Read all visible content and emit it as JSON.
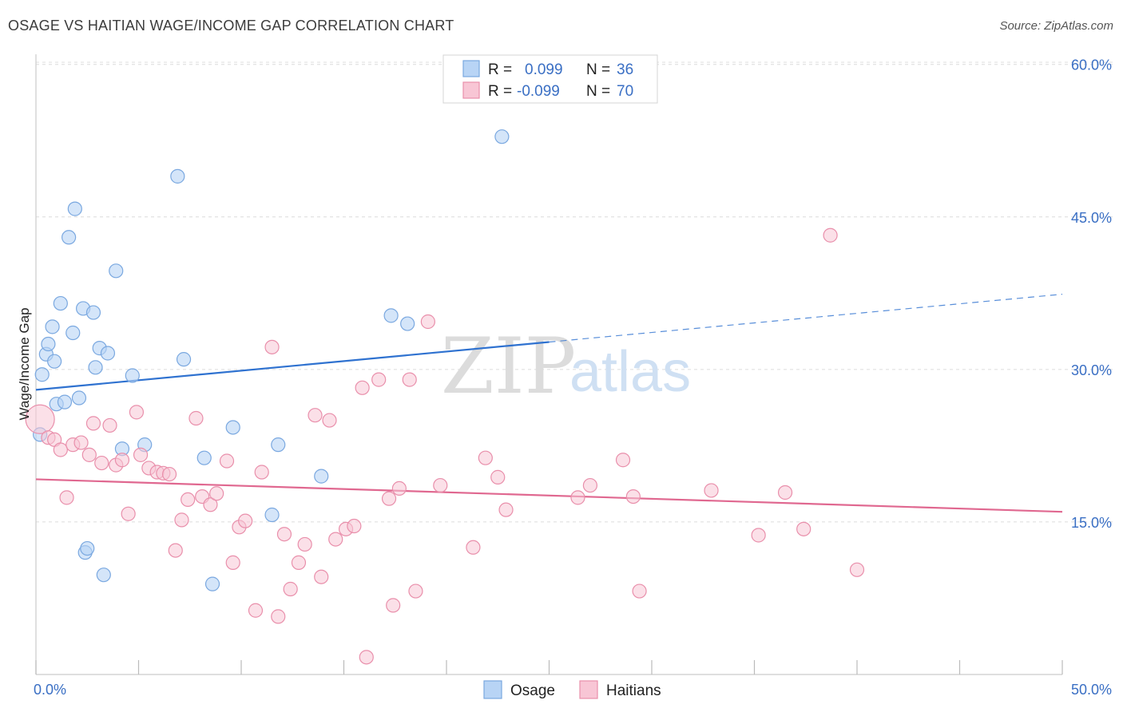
{
  "title": "OSAGE VS HAITIAN WAGE/INCOME GAP CORRELATION CHART",
  "source": "Source: ZipAtlas.com",
  "watermark": {
    "zip": "ZIP",
    "atlas": "atlas"
  },
  "legend": {
    "rows": [
      {
        "r_label": "R =",
        "r_value": "0.099",
        "n_label": "N =",
        "n_value": "36"
      },
      {
        "r_label": "R =",
        "r_value": "-0.099",
        "n_label": "N =",
        "n_value": "70"
      }
    ]
  },
  "colors": {
    "osage_fill": "#b8d4f5",
    "osage_stroke": "#7aa8e0",
    "osage_line": "#2f72d0",
    "haitian_fill": "#f8c6d5",
    "haitian_stroke": "#e98fab",
    "haitian_line": "#e06890",
    "grid": "#dcdcdc",
    "tick_label": "#3a6fc4"
  },
  "chart_data": {
    "type": "scatter",
    "title": "OSAGE VS HAITIAN WAGE/INCOME GAP CORRELATION CHART",
    "xlabel": "",
    "ylabel": "Wage/Income Gap",
    "xlim": [
      0,
      50
    ],
    "ylim": [
      0,
      61
    ],
    "x_tick_labels": [
      "0.0%",
      "50.0%"
    ],
    "y_ticks": [
      15,
      30,
      45,
      60
    ],
    "y_tick_labels": [
      "15.0%",
      "30.0%",
      "45.0%",
      "60.0%"
    ],
    "grid": true,
    "legend_position": "top-center",
    "series": [
      {
        "name": "Osage",
        "points": [
          [
            0.2,
            23.6
          ],
          [
            0.3,
            29.5
          ],
          [
            0.5,
            31.5
          ],
          [
            0.6,
            32.5
          ],
          [
            0.8,
            34.2
          ],
          [
            0.9,
            30.8
          ],
          [
            1.0,
            26.6
          ],
          [
            1.2,
            36.5
          ],
          [
            1.4,
            26.8
          ],
          [
            1.6,
            43.0
          ],
          [
            1.8,
            33.6
          ],
          [
            1.9,
            45.8
          ],
          [
            2.1,
            27.2
          ],
          [
            2.3,
            36.0
          ],
          [
            2.4,
            12.0
          ],
          [
            2.5,
            12.4
          ],
          [
            2.8,
            35.6
          ],
          [
            2.9,
            30.2
          ],
          [
            3.1,
            32.1
          ],
          [
            3.3,
            9.8
          ],
          [
            3.5,
            31.6
          ],
          [
            3.9,
            39.7
          ],
          [
            4.2,
            22.2
          ],
          [
            4.7,
            29.4
          ],
          [
            5.3,
            22.6
          ],
          [
            6.9,
            49.0
          ],
          [
            7.2,
            31.0
          ],
          [
            8.2,
            21.3
          ],
          [
            8.6,
            8.9
          ],
          [
            9.6,
            24.3
          ],
          [
            11.5,
            15.7
          ],
          [
            11.8,
            22.6
          ],
          [
            13.9,
            19.5
          ],
          [
            17.3,
            35.3
          ],
          [
            18.1,
            34.5
          ],
          [
            22.7,
            52.9
          ]
        ],
        "trend": {
          "x": [
            0,
            25
          ],
          "y": [
            28.0,
            32.7
          ]
        },
        "trend_dashed": {
          "x": [
            25,
            50
          ],
          "y": [
            32.7,
            37.4
          ]
        }
      },
      {
        "name": "Haitians",
        "points": [
          [
            0.2,
            25.1
          ],
          [
            0.6,
            23.3
          ],
          [
            0.9,
            23.1
          ],
          [
            1.2,
            22.1
          ],
          [
            1.5,
            17.4
          ],
          [
            1.8,
            22.6
          ],
          [
            2.2,
            22.8
          ],
          [
            2.6,
            21.6
          ],
          [
            2.8,
            24.7
          ],
          [
            3.2,
            20.8
          ],
          [
            3.6,
            24.5
          ],
          [
            3.9,
            20.6
          ],
          [
            4.2,
            21.1
          ],
          [
            4.5,
            15.8
          ],
          [
            4.9,
            25.8
          ],
          [
            5.1,
            21.6
          ],
          [
            5.5,
            20.3
          ],
          [
            5.9,
            19.9
          ],
          [
            6.2,
            19.8
          ],
          [
            6.5,
            19.7
          ],
          [
            6.8,
            12.2
          ],
          [
            7.1,
            15.2
          ],
          [
            7.4,
            17.2
          ],
          [
            7.8,
            25.2
          ],
          [
            8.1,
            17.5
          ],
          [
            8.5,
            16.7
          ],
          [
            8.8,
            17.8
          ],
          [
            9.3,
            21.0
          ],
          [
            9.6,
            11.0
          ],
          [
            9.9,
            14.5
          ],
          [
            10.2,
            15.1
          ],
          [
            10.7,
            6.3
          ],
          [
            11.0,
            19.9
          ],
          [
            11.5,
            32.2
          ],
          [
            11.8,
            5.7
          ],
          [
            12.1,
            13.8
          ],
          [
            12.4,
            8.4
          ],
          [
            12.8,
            11.0
          ],
          [
            13.1,
            12.8
          ],
          [
            13.6,
            25.5
          ],
          [
            13.9,
            9.6
          ],
          [
            14.3,
            25.0
          ],
          [
            14.6,
            13.3
          ],
          [
            15.1,
            14.3
          ],
          [
            15.5,
            14.6
          ],
          [
            15.9,
            28.2
          ],
          [
            16.1,
            1.7
          ],
          [
            16.7,
            29.0
          ],
          [
            17.2,
            17.3
          ],
          [
            17.4,
            6.8
          ],
          [
            17.7,
            18.3
          ],
          [
            18.2,
            29.0
          ],
          [
            18.5,
            8.2
          ],
          [
            19.1,
            34.7
          ],
          [
            19.7,
            18.6
          ],
          [
            21.3,
            12.5
          ],
          [
            21.9,
            21.3
          ],
          [
            22.5,
            19.4
          ],
          [
            22.9,
            16.2
          ],
          [
            26.4,
            17.4
          ],
          [
            27.0,
            18.6
          ],
          [
            28.6,
            21.1
          ],
          [
            29.1,
            17.5
          ],
          [
            29.4,
            8.2
          ],
          [
            32.9,
            18.1
          ],
          [
            35.2,
            13.7
          ],
          [
            36.5,
            17.9
          ],
          [
            37.4,
            14.3
          ],
          [
            38.7,
            43.2
          ],
          [
            40.0,
            10.3
          ]
        ],
        "trend": {
          "x": [
            0,
            50
          ],
          "y": [
            19.2,
            16.0
          ]
        }
      }
    ]
  }
}
